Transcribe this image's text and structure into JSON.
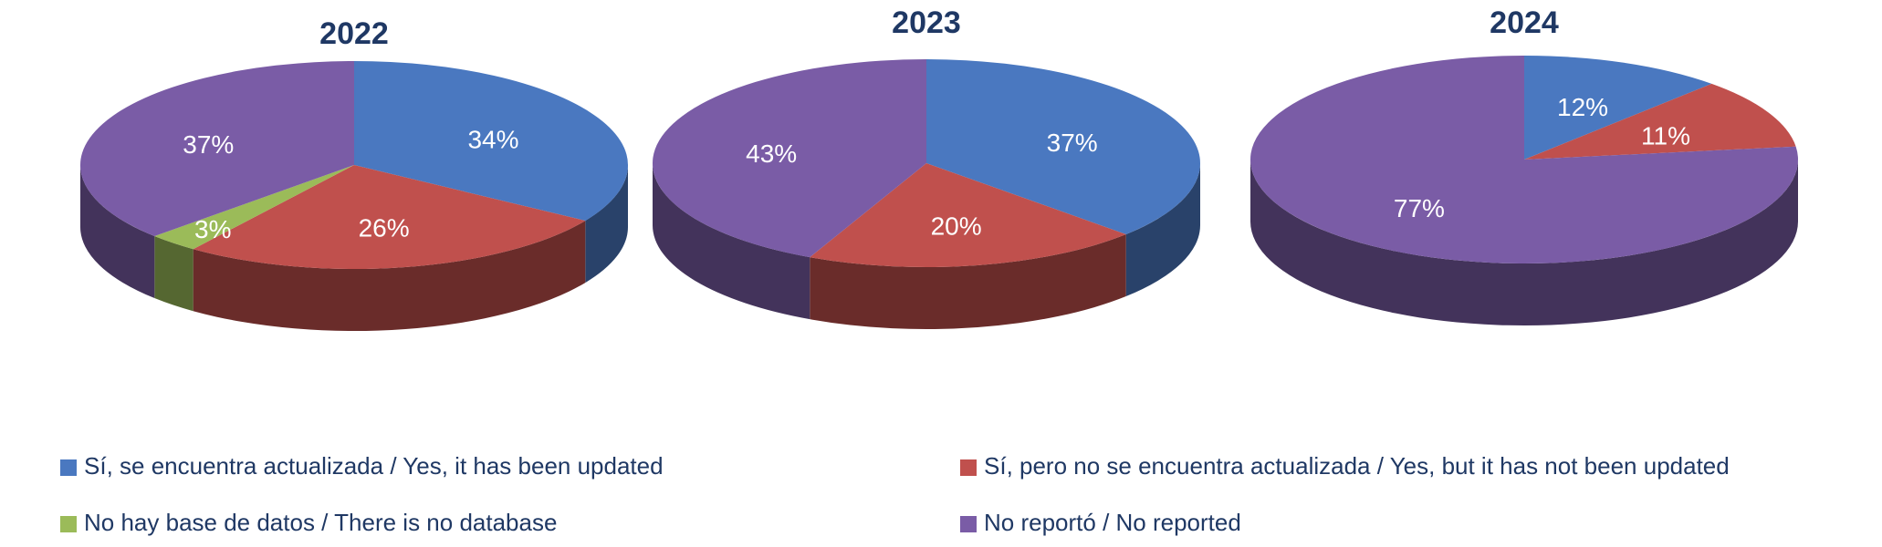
{
  "chart_data": [
    {
      "type": "pie",
      "title": "2022",
      "categories": [
        "Sí, se encuentra actualizada / Yes, it has been updated",
        "Sí, pero no se encuentra actualizada / Yes, but it has not been updated",
        "No hay base de datos / There is no database",
        "No reportó / No reported"
      ],
      "values": [
        34,
        26,
        3,
        37
      ],
      "value_labels": [
        "34%",
        "26%",
        "3%",
        "37%"
      ],
      "colors": [
        "#4a78c0",
        "#c0504d",
        "#9bbb59",
        "#7a5ca6"
      ]
    },
    {
      "type": "pie",
      "title": "2023",
      "categories": [
        "Sí, se encuentra actualizada / Yes, it has been updated",
        "Sí, pero no se encuentra actualizada / Yes, but it has not been updated",
        "No reportó / No reported"
      ],
      "values": [
        37,
        20,
        43
      ],
      "value_labels": [
        "37%",
        "20%",
        "43%"
      ],
      "colors": [
        "#4a78c0",
        "#c0504d",
        "#7a5ca6"
      ]
    },
    {
      "type": "pie",
      "title": "2024",
      "categories": [
        "Sí, se encuentra actualizada / Yes, it has been updated",
        "Sí, pero no se encuentra actualizada / Yes, but it has not been updated",
        "No reportó / No reported"
      ],
      "values": [
        12,
        11,
        77
      ],
      "value_labels": [
        "12%",
        "11%",
        "77%"
      ],
      "colors": [
        "#4a78c0",
        "#c0504d",
        "#7a5ca6"
      ]
    }
  ]
}
